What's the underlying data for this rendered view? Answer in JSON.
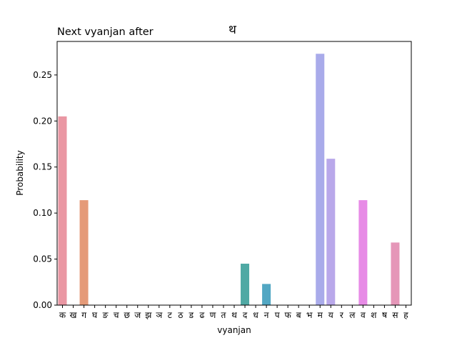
{
  "chart_data": {
    "type": "bar",
    "title_left": "Next vyanjan after",
    "title_right": "थ",
    "xlabel": "vyanjan",
    "ylabel": "Probability",
    "ylim": [
      0,
      0.2864
    ],
    "yticks": [
      0.0,
      0.05,
      0.1,
      0.15,
      0.2,
      0.25
    ],
    "ytick_labels": [
      "0.00",
      "0.05",
      "0.10",
      "0.15",
      "0.20",
      "0.25"
    ],
    "categories": [
      "क",
      "ख",
      "ग",
      "घ",
      "ङ",
      "च",
      "छ",
      "ज",
      "झ",
      "ञ",
      "ट",
      "ठ",
      "ड",
      "ढ",
      "ण",
      "त",
      "थ",
      "द",
      "ध",
      "न",
      "प",
      "फ",
      "ब",
      "भ",
      "म",
      "य",
      "र",
      "ल",
      "व",
      "श",
      "ष",
      "स",
      "ह"
    ],
    "values": [
      0.205,
      0.0,
      0.114,
      0.0,
      0.0,
      0.0,
      0.0,
      0.0,
      0.0,
      0.0,
      0.0,
      0.0,
      0.0,
      0.0,
      0.0,
      0.0,
      0.0,
      0.045,
      0.0,
      0.023,
      0.0,
      0.0,
      0.0,
      0.0,
      0.273,
      0.159,
      0.0,
      0.0,
      0.114,
      0.0,
      0.0,
      0.068,
      0.0
    ],
    "colors": [
      "#ea97a3",
      "#e89b8a",
      "#e59a78",
      "#d9a46c",
      "#c9aa67",
      "#b9af65",
      "#a9b363",
      "#97b762",
      "#84ba63",
      "#6bbd68",
      "#52bf75",
      "#4ebf85",
      "#4ebf93",
      "#4fbfa1",
      "#50beae",
      "#50bcb9",
      "#50bac3",
      "#4fa9a4",
      "#53b3ca",
      "#52a7c3",
      "#6bb0d6",
      "#7db4e2",
      "#96b1ea",
      "#a6aceb",
      "#a9abea",
      "#b9a8ea",
      "#c7a3ea",
      "#d59eea",
      "#e78be6",
      "#e695d8",
      "#e697c7",
      "#e596b8",
      "#e797aa"
    ]
  }
}
